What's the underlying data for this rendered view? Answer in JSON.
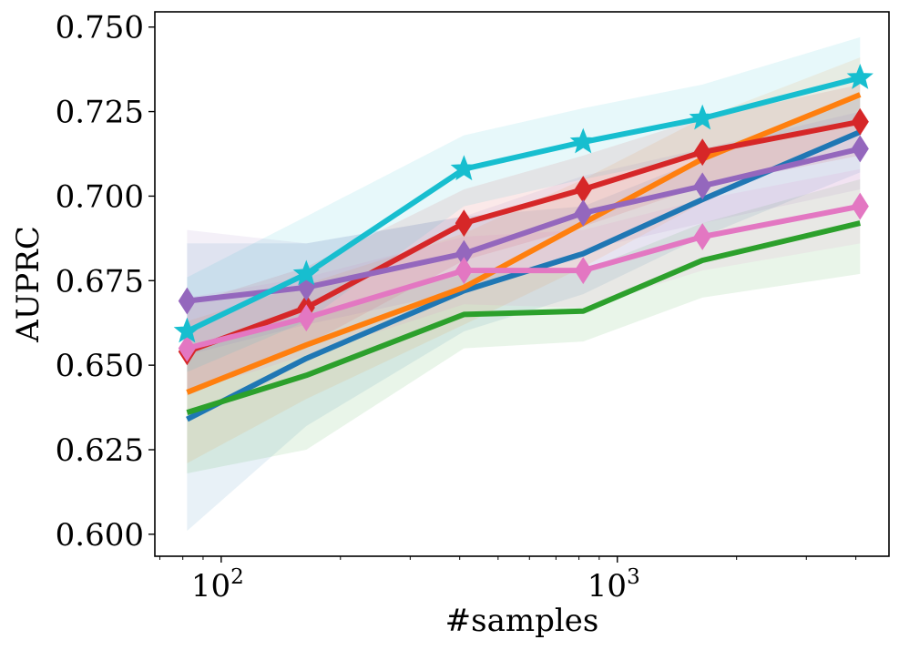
{
  "chart_data": {
    "type": "line",
    "title": "",
    "xlabel": "#samples",
    "ylabel": "AUPRC",
    "xscale": "log",
    "xlim": [
      68,
      4850
    ],
    "ylim": [
      0.5935,
      0.7545
    ],
    "yticks": [
      {
        "value": 0.6,
        "label": "0.600"
      },
      {
        "value": 0.625,
        "label": "0.625"
      },
      {
        "value": 0.65,
        "label": "0.650"
      },
      {
        "value": 0.675,
        "label": "0.675"
      },
      {
        "value": 0.7,
        "label": "0.700"
      },
      {
        "value": 0.725,
        "label": "0.725"
      },
      {
        "value": 0.75,
        "label": "0.750"
      }
    ],
    "xticks": [
      {
        "value": 100,
        "base": "10",
        "exp": "2"
      },
      {
        "value": 1000,
        "base": "10",
        "exp": "3"
      }
    ],
    "x": [
      82,
      164,
      410,
      820,
      1640,
      4100
    ],
    "series": [
      {
        "name": "series-blue",
        "color": "#1f77b4",
        "marker": "none",
        "values": [
          0.634,
          0.652,
          0.672,
          0.683,
          0.699,
          0.719
        ],
        "lower": [
          0.601,
          0.632,
          0.66,
          0.671,
          0.688,
          0.707
        ],
        "upper": [
          0.686,
          0.686,
          0.694,
          0.697,
          0.711,
          0.729
        ]
      },
      {
        "name": "series-orange",
        "color": "#ff7f0e",
        "marker": "none",
        "values": [
          0.642,
          0.656,
          0.673,
          0.692,
          0.711,
          0.73
        ],
        "lower": [
          0.621,
          0.64,
          0.662,
          0.679,
          0.698,
          0.719
        ],
        "upper": [
          0.663,
          0.674,
          0.689,
          0.705,
          0.723,
          0.741
        ]
      },
      {
        "name": "series-green",
        "color": "#2ca02c",
        "marker": "none",
        "values": [
          0.636,
          0.647,
          0.665,
          0.666,
          0.681,
          0.692
        ],
        "lower": [
          0.618,
          0.625,
          0.655,
          0.657,
          0.67,
          0.677
        ],
        "upper": [
          0.654,
          0.664,
          0.677,
          0.678,
          0.692,
          0.705
        ]
      },
      {
        "name": "series-red",
        "color": "#d62728",
        "marker": "thin-diamond",
        "values": [
          0.654,
          0.667,
          0.692,
          0.702,
          0.713,
          0.722
        ],
        "lower": [
          0.641,
          0.656,
          0.681,
          0.691,
          0.703,
          0.712
        ],
        "upper": [
          0.668,
          0.679,
          0.702,
          0.712,
          0.723,
          0.733
        ]
      },
      {
        "name": "series-purple",
        "color": "#9467bd",
        "marker": "thin-diamond",
        "values": [
          0.669,
          0.673,
          0.683,
          0.695,
          0.703,
          0.714
        ],
        "lower": [
          0.653,
          0.662,
          0.672,
          0.684,
          0.692,
          0.702
        ],
        "upper": [
          0.69,
          0.686,
          0.694,
          0.706,
          0.714,
          0.725
        ]
      },
      {
        "name": "series-pink",
        "color": "#e377c2",
        "marker": "thin-diamond",
        "values": [
          0.655,
          0.664,
          0.678,
          0.678,
          0.688,
          0.697
        ],
        "lower": [
          0.642,
          0.653,
          0.668,
          0.667,
          0.678,
          0.686
        ],
        "upper": [
          0.67,
          0.676,
          0.688,
          0.69,
          0.699,
          0.708
        ]
      },
      {
        "name": "series-cyan",
        "color": "#17becf",
        "marker": "star",
        "values": [
          0.66,
          0.677,
          0.708,
          0.716,
          0.723,
          0.735
        ],
        "lower": [
          0.648,
          0.663,
          0.697,
          0.705,
          0.712,
          0.723
        ],
        "upper": [
          0.676,
          0.694,
          0.718,
          0.726,
          0.733,
          0.747
        ]
      }
    ]
  }
}
